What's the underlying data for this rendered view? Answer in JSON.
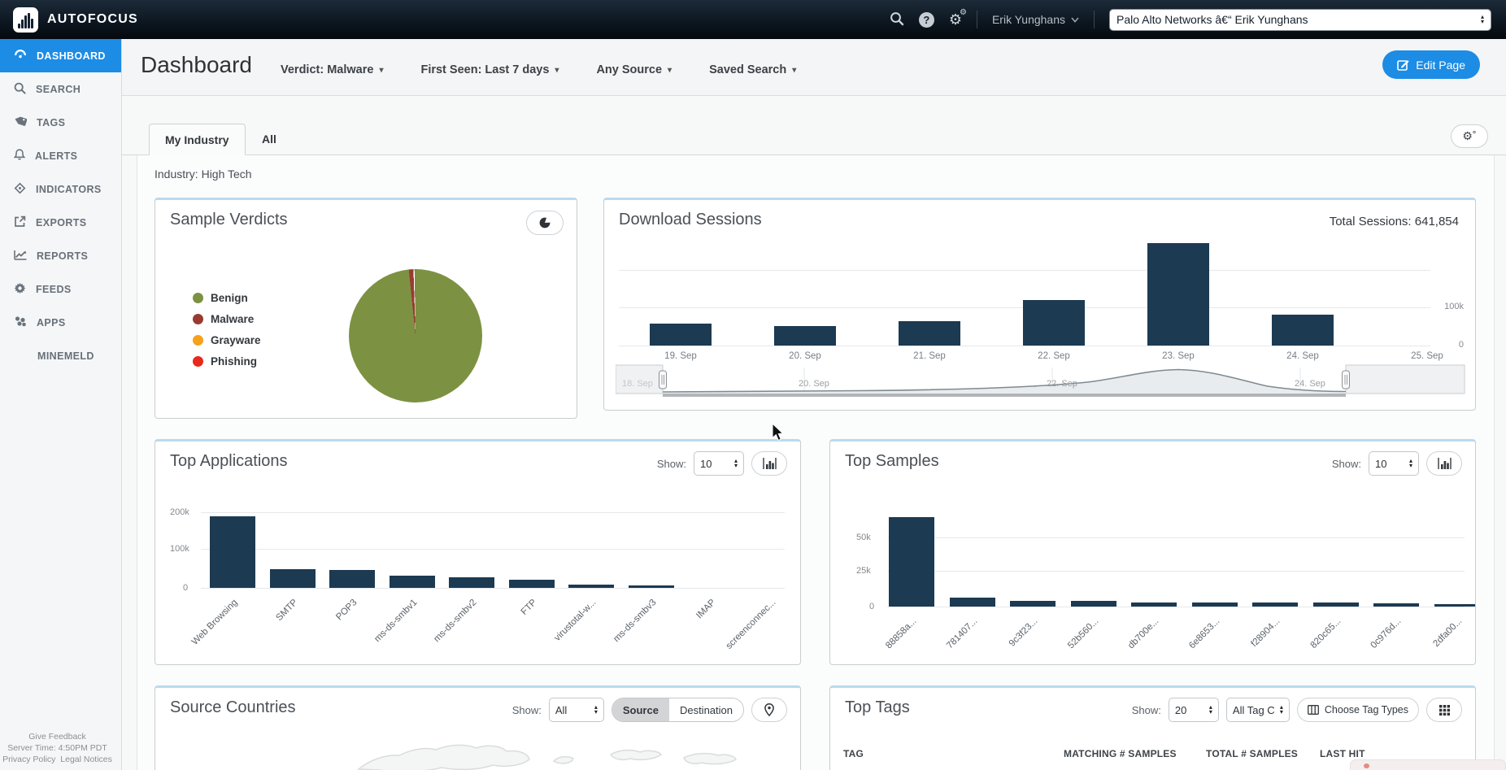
{
  "topbar": {
    "brand": "AUTOFOCUS",
    "user_name": "Erik Yunghans",
    "account_selector": "Palo Alto Networks â€“ Erik Yunghans"
  },
  "sidebar": {
    "items": [
      {
        "label": "DASHBOARD",
        "icon": "dashboard-icon",
        "active": true
      },
      {
        "label": "SEARCH",
        "icon": "search-icon",
        "active": false
      },
      {
        "label": "TAGS",
        "icon": "tag-icon",
        "active": false
      },
      {
        "label": "ALERTS",
        "icon": "bell-icon",
        "active": false
      },
      {
        "label": "INDICATORS",
        "icon": "indicator-icon",
        "active": false
      },
      {
        "label": "EXPORTS",
        "icon": "export-icon",
        "active": false
      },
      {
        "label": "REPORTS",
        "icon": "report-icon",
        "active": false
      },
      {
        "label": "FEEDS",
        "icon": "gear-icon",
        "active": false
      },
      {
        "label": "APPS",
        "icon": "apps-icon",
        "active": false
      },
      {
        "label": "MINEMELD",
        "icon": null,
        "active": false
      }
    ],
    "footer_line1": "Give Feedback",
    "footer_line2": "Server Time: 4:50PM PDT",
    "footer_links": [
      "Privacy Policy",
      "Legal Notices"
    ]
  },
  "header": {
    "title": "Dashboard",
    "filters": [
      "Verdict: Malware",
      "First Seen: Last 7 days",
      "Any Source",
      "Saved Search"
    ],
    "edit_page_label": "Edit Page"
  },
  "tabs": {
    "active_tab": "My Industry",
    "second_tab": "All",
    "industry_label": "Industry: High Tech"
  },
  "panels": {
    "sample_verdicts": {
      "title": "Sample Verdicts"
    },
    "download_sessions": {
      "title": "Download Sessions",
      "total_label": "Total Sessions: 641,854"
    },
    "top_applications": {
      "title": "Top Applications",
      "show_label": "Show:",
      "show_value": "10"
    },
    "top_samples": {
      "title": "Top Samples",
      "show_label": "Show:",
      "show_value": "10"
    },
    "source_countries": {
      "title": "Source Countries",
      "show_label": "Show:",
      "show_value": "All",
      "toggle_options": [
        "Source",
        "Destination"
      ],
      "active_toggle": "Source"
    },
    "top_tags": {
      "title": "Top Tags",
      "show_label": "Show:",
      "show_value": "20",
      "tag_class_value": "All Tag C",
      "choose_button_label": "Choose Tag Types",
      "columns": [
        "TAG",
        "MATCHING # SAMPLES",
        "TOTAL # SAMPLES",
        "LAST HIT"
      ]
    }
  },
  "chart_data": [
    {
      "type": "pie",
      "title": "Sample Verdicts",
      "slices": [
        {
          "label": "Benign",
          "value_pct": 98.9,
          "color": "#7d9142"
        },
        {
          "label": "Malware",
          "value_pct": 1.1,
          "color": "#993a31"
        },
        {
          "label": "Grayware",
          "value_pct": 0,
          "color": "#f5a11c"
        },
        {
          "label": "Phishing",
          "value_pct": 0,
          "color": "#ea281c"
        }
      ],
      "legend_position": "left"
    },
    {
      "type": "bar",
      "title": "Download Sessions",
      "categories": [
        "19. Sep",
        "20. Sep",
        "21. Sep",
        "22. Sep",
        "23. Sep",
        "24. Sep",
        "25. Sep"
      ],
      "values": [
        58000,
        50000,
        64000,
        120000,
        268000,
        80000,
        0
      ],
      "total_sessions": 641854,
      "yticks": [
        "100k",
        "0"
      ],
      "ylim": [
        0,
        300000
      ],
      "grid": true,
      "brush_labels": [
        "18. Sep",
        "20. Sep",
        "22. Sep",
        "24. Sep"
      ],
      "brush_selection": [
        "19. Sep",
        "24. Sep"
      ]
    },
    {
      "type": "bar",
      "title": "Top Applications",
      "categories": [
        "Web Browsing",
        "SMTP",
        "POP3",
        "ms-ds-smbv1",
        "ms-ds-smbv2",
        "FTP",
        "virustotal-w...",
        "ms-ds-smbv3",
        "IMAP",
        "screenconnec..."
      ],
      "values": [
        195000,
        52000,
        48000,
        33000,
        29000,
        22000,
        9000,
        7000,
        1500,
        1200
      ],
      "yticks": [
        "200k",
        "100k",
        "0"
      ],
      "ylim": [
        0,
        220000
      ],
      "grid": true
    },
    {
      "type": "bar",
      "title": "Top Samples",
      "categories": [
        "88858a...",
        "781407...",
        "9c3f23...",
        "52b560...",
        "db700e...",
        "6e8653...",
        "f28904...",
        "820c65...",
        "0c976d...",
        "2dfa00..."
      ],
      "values": [
        67000,
        7000,
        4500,
        4000,
        3200,
        3000,
        3000,
        3000,
        2200,
        2000
      ],
      "yticks": [
        "50k",
        "25k",
        "0"
      ],
      "ylim": [
        0,
        70000
      ],
      "grid": true
    }
  ],
  "colors": {
    "bar": "#1c3a52",
    "accent_blue": "#1c8ce5",
    "benign_green": "#7d9142",
    "malware_maroon": "#993a31",
    "grayware_orange": "#f5a11c",
    "phishing_red": "#ea281c"
  }
}
